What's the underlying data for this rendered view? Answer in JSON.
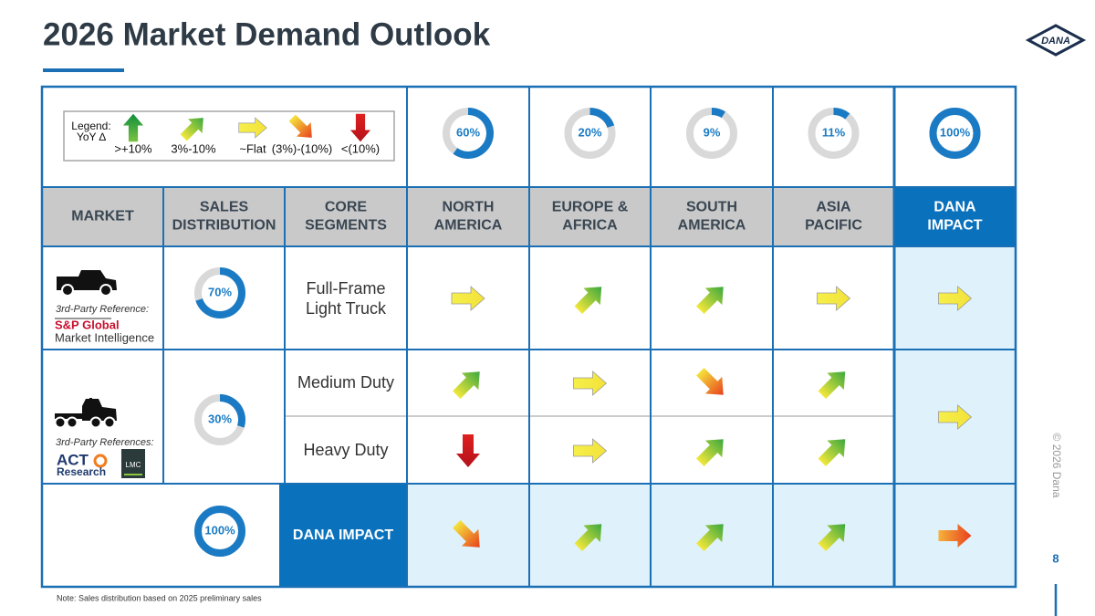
{
  "header": {
    "title": "2026 Market Demand Outlook",
    "logo": "DANA"
  },
  "legend": {
    "title": [
      "Legend:",
      "YoY ∆"
    ],
    "items": [
      ">+10%",
      "3%-10%",
      "~Flat",
      "(3%)-(10%)",
      "<(10%)"
    ]
  },
  "regional_share": {
    "values": [
      60,
      20,
      9,
      11,
      100
    ],
    "value_labels": [
      "60%",
      "20%",
      "9%",
      "11%",
      "100%"
    ]
  },
  "table": {
    "columns": [
      [
        "MARKET"
      ],
      [
        "SALES",
        "DISTRIBUTION"
      ],
      [
        "CORE",
        "SEGMENTS"
      ],
      [
        "NORTH",
        "AMERICA"
      ],
      [
        "EUROPE &",
        "AFRICA"
      ],
      [
        "SOUTH",
        "AMERICA"
      ],
      [
        "ASIA",
        "PACIFIC"
      ],
      [
        "DANA",
        "IMPACT"
      ]
    ],
    "rows": [
      {
        "reference_label": "3rd-Party Reference:",
        "references": [
          "S&P Global",
          "Market Intelligence"
        ],
        "segments": [
          [
            "Full-Frame",
            "Light Truck"
          ]
        ]
      },
      {
        "reference_label": "3rd-Party References:",
        "references": [
          "ACT",
          "Research",
          "LMC"
        ],
        "segments": [
          [
            "Medium Duty"
          ],
          [
            "Heavy Duty"
          ]
        ]
      }
    ],
    "total_label": "DANA IMPACT"
  },
  "sales_distribution": {
    "values": [
      70,
      30,
      100
    ],
    "value_labels": [
      "70%",
      "30%",
      "100%"
    ]
  },
  "footer": {
    "note": "Note: Sales distribution based on 2025 preliminary sales",
    "copyright": "© 2026 Dana",
    "page": "8"
  }
}
